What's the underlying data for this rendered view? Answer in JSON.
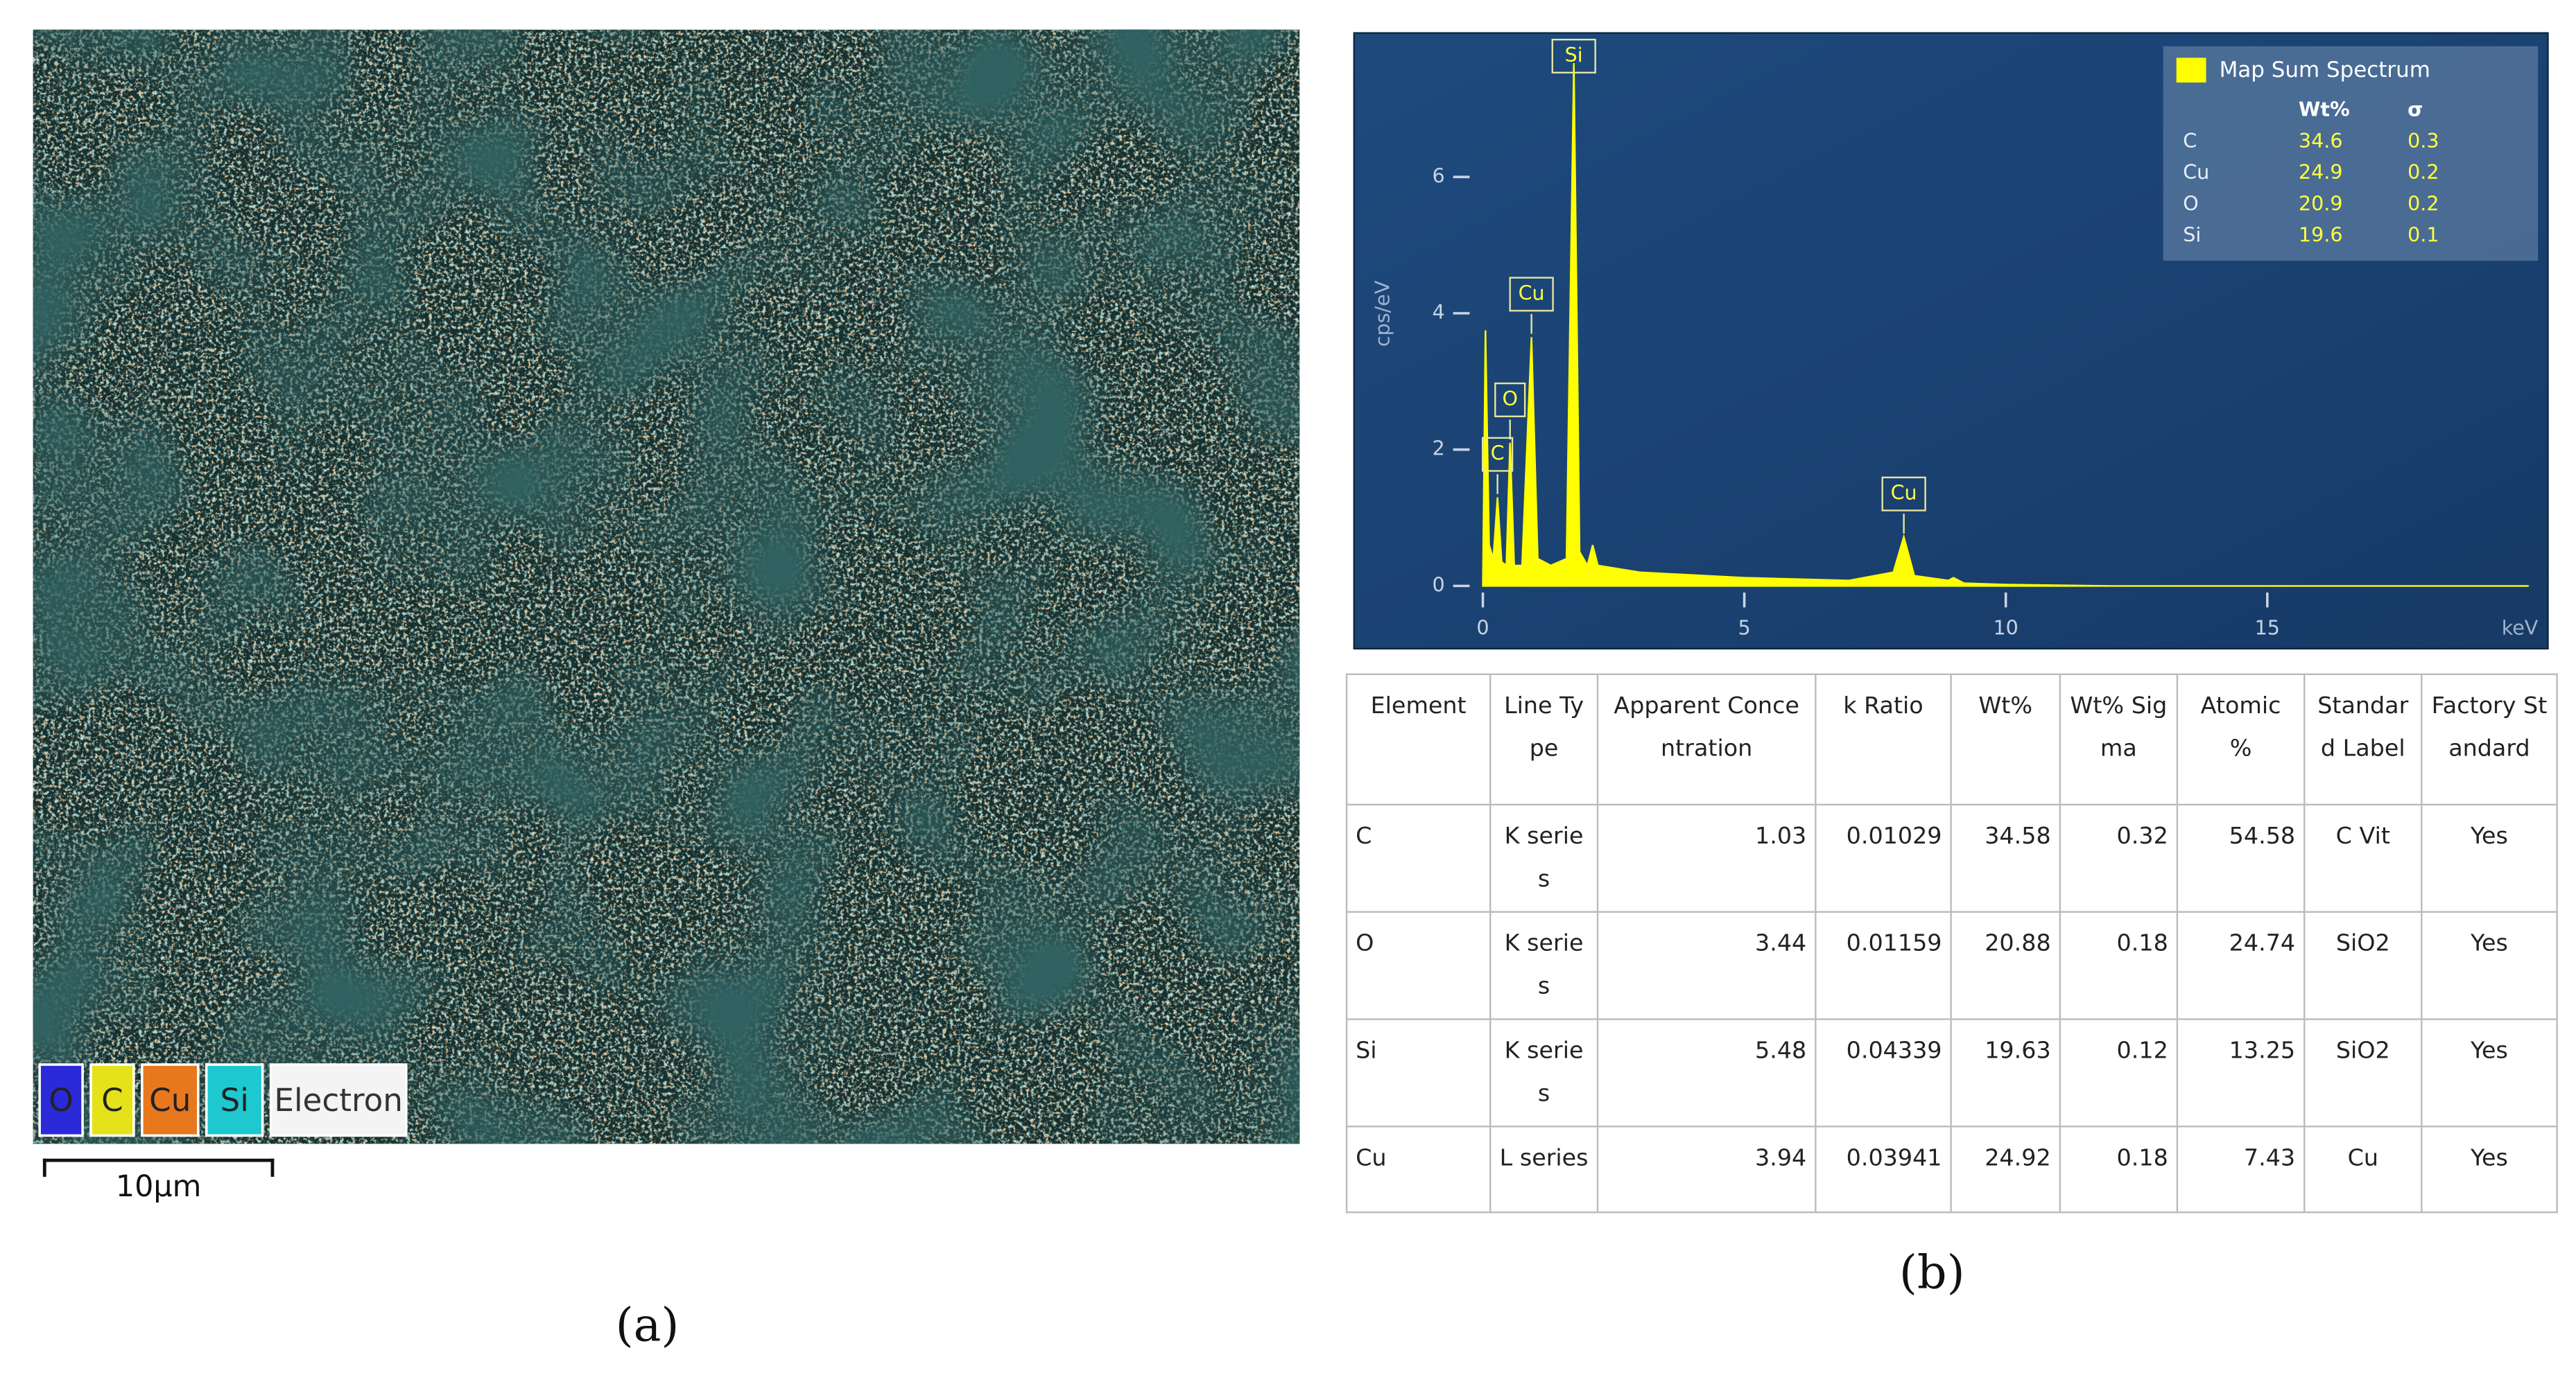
{
  "figure": {
    "caption_a": "(a)",
    "caption_b": "(b)"
  },
  "map": {
    "legend": [
      "O",
      "C",
      "Cu",
      "Si",
      "Electron"
    ],
    "scale_bar": "10μm"
  },
  "chart_data": {
    "type": "area",
    "y_label": "cps/eV",
    "x_label": "keV",
    "x": [
      0,
      0.05,
      0.12,
      0.2,
      0.28,
      0.36,
      0.45,
      0.52,
      0.6,
      0.75,
      0.93,
      1.05,
      1.3,
      1.6,
      1.74,
      1.85,
      2.0,
      2.1,
      2.2,
      3,
      5,
      7,
      7.85,
      8.05,
      8.25,
      8.9,
      9.0,
      9.2,
      10,
      12,
      20
    ],
    "series": [
      {
        "name": "Map Sum Spectrum",
        "color": "#ffff00",
        "values": [
          0,
          3.75,
          0.6,
          0.4,
          1.3,
          0.35,
          0.3,
          2.1,
          0.3,
          0.3,
          3.65,
          0.4,
          0.3,
          0.4,
          7.67,
          0.5,
          0.3,
          0.6,
          0.3,
          0.2,
          0.12,
          0.08,
          0.2,
          0.72,
          0.15,
          0.08,
          0.12,
          0.04,
          0.02,
          0,
          0
        ]
      }
    ],
    "xlim": [
      0,
      20
    ],
    "xticks": [
      0,
      5,
      10,
      15
    ],
    "ylim": [
      0,
      8
    ],
    "yticks": [
      0,
      2,
      4,
      6
    ],
    "peak_labels": [
      {
        "text": "Si",
        "x": 1.74
      },
      {
        "text": "Cu",
        "x": 0.93
      },
      {
        "text": "O",
        "x": 0.52
      },
      {
        "text": "C",
        "x": 0.28
      },
      {
        "text": "Cu",
        "x": 8.05
      }
    ],
    "legend_table": {
      "columns": [
        "Wt%",
        "σ"
      ],
      "rows": [
        [
          "C",
          34.6,
          0.3
        ],
        [
          "Cu",
          24.9,
          0.2
        ],
        [
          "O",
          20.9,
          0.2
        ],
        [
          "Si",
          19.6,
          0.1
        ]
      ]
    }
  },
  "table": {
    "columns": [
      "Element",
      "Line Type",
      "Apparent Concentration",
      "k Ratio",
      "Wt%",
      "Wt% Sigma",
      "Atomic %",
      "Standard Label",
      "Factory Standard"
    ],
    "rows": [
      [
        "C",
        "K series",
        "1.03",
        "0.01029",
        "34.58",
        "0.32",
        "54.58",
        "C Vit",
        "Yes"
      ],
      [
        "O",
        "K series",
        "3.44",
        "0.01159",
        "20.88",
        "0.18",
        "24.74",
        "SiO2",
        "Yes"
      ],
      [
        "Si",
        "K series",
        "5.48",
        "0.04339",
        "19.63",
        "0.12",
        "13.25",
        "SiO2",
        "Yes"
      ],
      [
        "Cu",
        "L series",
        "3.94",
        "0.03941",
        "24.92",
        "0.18",
        "7.43",
        "Cu",
        "Yes"
      ]
    ]
  }
}
